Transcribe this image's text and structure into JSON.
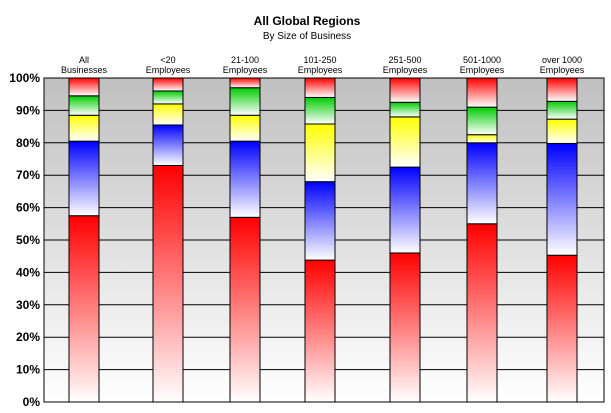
{
  "chart_data": {
    "type": "bar",
    "stacked": true,
    "percent_stacked": true,
    "title": "All Global Regions",
    "subtitle": "By Size of Business",
    "categories": [
      [
        "All",
        "Businesses"
      ],
      [
        "<20",
        "Employees"
      ],
      [
        "21-100",
        "Employees"
      ],
      [
        "101-250",
        "Employees"
      ],
      [
        "251-500",
        "Employees"
      ],
      [
        "501-1000",
        "Employees"
      ],
      [
        "over 1000",
        "Employees"
      ]
    ],
    "segments": [
      {
        "color": "#ff0000",
        "values": [
          57.5,
          73.0,
          57.0,
          43.8,
          46.0,
          55.0,
          45.3
        ]
      },
      {
        "color": "#0000ff",
        "values": [
          23.0,
          12.5,
          23.5,
          24.2,
          26.5,
          25.0,
          34.5
        ]
      },
      {
        "color": "#ffff00",
        "values": [
          8.0,
          6.5,
          8.0,
          17.8,
          15.5,
          2.5,
          7.5
        ]
      },
      {
        "color": "#00cc00",
        "values": [
          6.0,
          4.0,
          8.5,
          8.2,
          4.5,
          8.5,
          5.5
        ]
      },
      {
        "color": "#ff0000",
        "values": [
          5.5,
          4.0,
          3.0,
          6.0,
          7.5,
          9.0,
          7.2
        ]
      }
    ],
    "ylim": [
      0,
      100
    ],
    "y_ticks": [
      "0%",
      "10%",
      "20%",
      "30%",
      "40%",
      "50%",
      "60%",
      "70%",
      "80%",
      "90%",
      "100%"
    ],
    "grid": true,
    "legend": "none",
    "background_gradient": [
      "#c0c0c0",
      "#ffffff"
    ]
  }
}
